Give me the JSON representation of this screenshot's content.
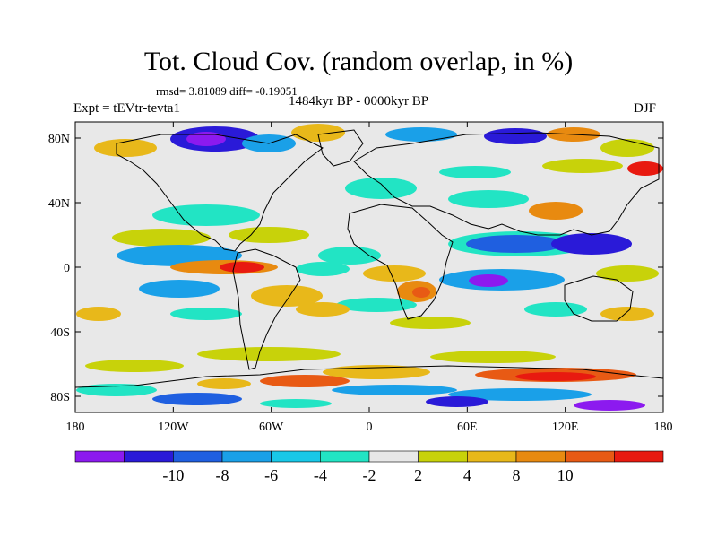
{
  "title": "Tot. Cloud Cov. (random overlap, in %)",
  "stats": "rmsd= 3.81089 diff= -0.19051",
  "period": "1484kyr BP - 0000kyr BP",
  "experiment": "Expt = tEVtr-tevta1",
  "season": "DJF",
  "map": {
    "projection": "cylindrical-equidistant",
    "lon_range": [
      -180,
      180
    ],
    "lat_range": [
      -90,
      90
    ],
    "lat_ticks": [
      {
        "value": 80,
        "label": "80N"
      },
      {
        "value": 40,
        "label": "40N"
      },
      {
        "value": 0,
        "label": "0"
      },
      {
        "value": -40,
        "label": "40S"
      },
      {
        "value": -80,
        "label": "80S"
      }
    ],
    "lon_ticks": [
      {
        "value": -180,
        "label": "180"
      },
      {
        "value": -120,
        "label": "120W"
      },
      {
        "value": -60,
        "label": "60W"
      },
      {
        "value": 0,
        "label": "0"
      },
      {
        "value": 60,
        "label": "60E"
      },
      {
        "value": 120,
        "label": "120E"
      },
      {
        "value": 180,
        "label": "180"
      }
    ]
  },
  "colorbar": {
    "colors": [
      "#8c1aef",
      "#2a1ad8",
      "#1f5fe0",
      "#1aa0e8",
      "#18c8e8",
      "#22e4c4",
      "#e8e8e8",
      "#c8d20a",
      "#e8b81a",
      "#e88a10",
      "#e85a14",
      "#e81a10"
    ],
    "labels": [
      "-10",
      "-8",
      "-6",
      "-4",
      "-2",
      "2",
      "4",
      "8",
      "10"
    ]
  },
  "colors": {
    "background": "#e8e8e8",
    "coastline": "#000000"
  }
}
